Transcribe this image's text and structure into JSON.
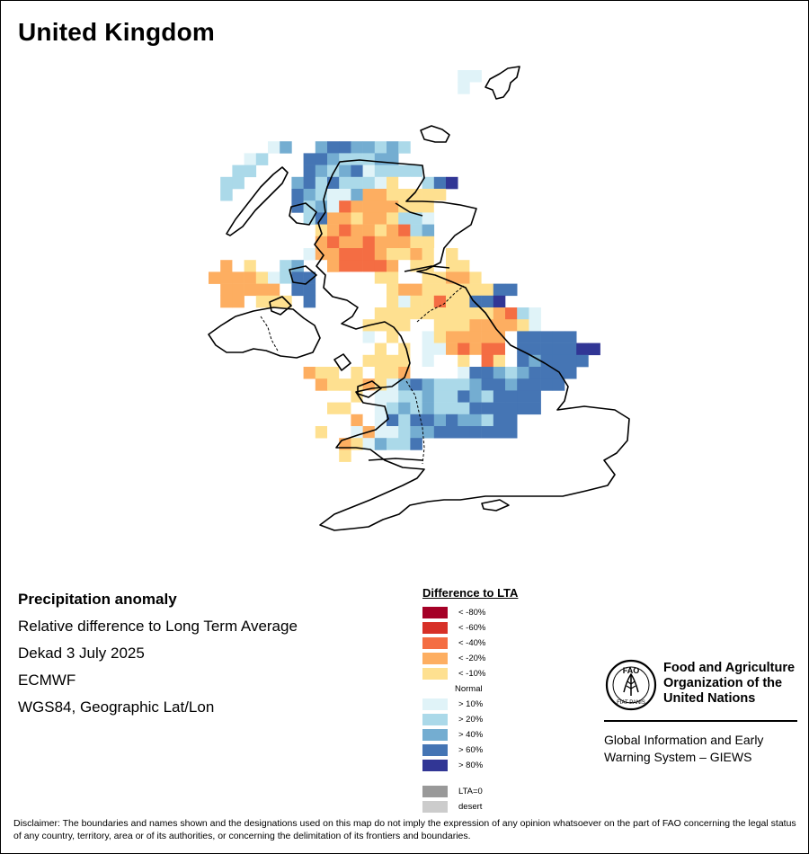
{
  "title": "United Kingdom",
  "info": {
    "product": "Precipitation anomaly",
    "measure": "Relative difference to Long Term Average",
    "period": "Dekad 3 July 2025",
    "source": "ECMWF",
    "projection": "WGS84, Geographic Lat/Lon"
  },
  "legend": {
    "title": "Difference to LTA",
    "classes": [
      {
        "label": "< -80%",
        "color": "#a50026"
      },
      {
        "label": "< -60%",
        "color": "#d73027"
      },
      {
        "label": "< -40%",
        "color": "#f46d43"
      },
      {
        "label": "< -20%",
        "color": "#fdae61"
      },
      {
        "label": "< -10%",
        "color": "#fee090"
      },
      {
        "label": "Normal",
        "color": "#ffffff"
      },
      {
        "label": "> 10%",
        "color": "#e0f3f8"
      },
      {
        "label": "> 20%",
        "color": "#abd9e9"
      },
      {
        "label": "> 40%",
        "color": "#74add1"
      },
      {
        "label": "> 60%",
        "color": "#4575b4"
      },
      {
        "label": "> 80%",
        "color": "#313695"
      }
    ],
    "extra": [
      {
        "label": "LTA=0",
        "color": "#999999"
      },
      {
        "label": "desert",
        "color": "#cccccc"
      }
    ]
  },
  "org": {
    "emblem_text": "FAO",
    "emblem_motto": "FIAT PANIS",
    "name_line1": "Food and Agriculture",
    "name_line2": "Organization of the",
    "name_line3": "United Nations",
    "giews_line1": "Global Information and Early",
    "giews_line2": "Warning System – GIEWS"
  },
  "disclaimer": "Disclaimer: The boundaries and names shown and the designations used on this map do not imply the expression of any opinion whatsoever on the part of FAO concerning the legal status of any country, territory, area or of its authorities, or concerning the delimitation of its frontiers and boundaries.",
  "map": {
    "rows": [
      {
        "row": 0,
        "start": 21,
        "cells": "GG"
      },
      {
        "row": 1,
        "start": 21,
        "cells": "G"
      },
      {
        "row": 5,
        "start": 5,
        "cells": "F"
      },
      {
        "row": 6,
        "start": 4,
        "cells": "FGI  IJJIIHIH"
      },
      {
        "row": 7,
        "start": 3,
        "cells": "GH   JJIHHHII"
      },
      {
        "row": 8,
        "start": 2,
        "cells": "HH    JIHIJGHHHH"
      },
      {
        "row": 9,
        "start": 1,
        "cells": "HH    IJHJHHHGEFFHJK"
      },
      {
        "row": 10,
        "start": 1,
        "cells": "H     JIHGGIDDEEEEE"
      },
      {
        "row": 11,
        "start": 7,
        "cells": "JHIGCDDDDEEEF"
      },
      {
        "row": 12,
        "start": 8,
        "cells": "HJDDEDDEHHG"
      },
      {
        "row": 13,
        "start": 9,
        "cells": "EDCDDEDCHI"
      },
      {
        "row": 14,
        "start": 9,
        "cells": "DCDDCDDDEE"
      },
      {
        "row": 15,
        "start": 8,
        "cells": "GDDCCCDEEDEFE"
      },
      {
        "row": 16,
        "start": 1,
        "cells": "DFEFFHI FDCCCCDFEEFEEF"
      },
      {
        "row": 17,
        "start": 0,
        "cells": "DDDDEGHJJ  FFFEEFFEEDDEF"
      },
      {
        "row": 18,
        "start": 1,
        "cells": "DDDDDFJJ     FEDDEEEEEEJJ"
      },
      {
        "row": 19,
        "start": 1,
        "cells": "DD EEE J     FEGEECEEJJK"
      },
      {
        "row": 20,
        "start": 14,
        "cells": "EEEEEEEEEEDCHG"
      },
      {
        "row": 21,
        "start": 13,
        "cells": "EEEEFFEEEDDDDEG"
      },
      {
        "row": 22,
        "start": 13,
        "cells": "GFEFFGEDDDDDFJJJJJ"
      },
      {
        "row": 23,
        "start": 13,
        "cells": "FEFEFGGDCDCCFJJJJJKK"
      },
      {
        "row": 24,
        "start": 13,
        "cells": "EEEEFGFFEFCEFJIJJJJ"
      },
      {
        "row": 25,
        "start": 8,
        "cells": "DEEFEFEEDFFFFGJJIHIJJJJ"
      },
      {
        "row": 26,
        "start": 9,
        "cells": "DEEEDEGIJIHHHIJJIJJJJ"
      },
      {
        "row": 27,
        "start": 12,
        "cells": "EFGGHHIHHJIHJJJJ"
      },
      {
        "row": 28,
        "start": 9,
        "cells": "FEEFFGHIHIHHHJJJJJJ"
      },
      {
        "row": 29,
        "start": 9,
        "cells": "FFFDFGJHJJIJIIHJJ"
      },
      {
        "row": 30,
        "start": 9,
        "cells": "EFFGDGGHIIJJJJJJJ"
      },
      {
        "row": 31,
        "start": 11,
        "cells": "DEGIHHJ"
      },
      {
        "row": 32,
        "start": 11,
        "cells": "E"
      }
    ]
  }
}
